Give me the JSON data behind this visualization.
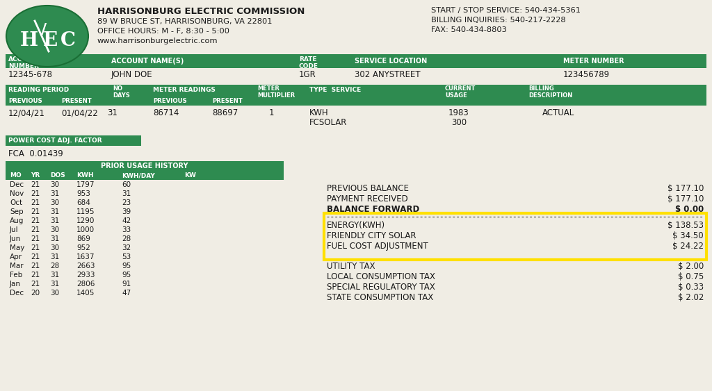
{
  "bg_color": "#f0ede4",
  "green_color": "#2e8b50",
  "white": "#ffffff",
  "black": "#1a1a1a",
  "yellow": "#FFE000",
  "company_name": "HARRISONBURG ELECTRIC COMMISSION",
  "company_addr1": "89 W BRUCE ST, HARRISONBURG, VA 22801",
  "company_addr2": "OFFICE HOURS: M - F, 8:30 - 5:00",
  "company_addr3": "www.harrisonburgelectric.com",
  "contact1": "START / STOP SERVICE: 540-434-5361",
  "contact2": "BILLING INQUIRIES: 540-217-2228",
  "contact3": "FAX: 540-434-8803",
  "account_number": "12345-678",
  "account_name": "JOHN DOE",
  "rate_code": "1GR",
  "service_location": "302 ANYSTREET",
  "meter_number": "123456789",
  "reading_previous": "12/04/21",
  "reading_present": "01/04/22",
  "no_days": "31",
  "meter_prev": "86714",
  "meter_present": "88697",
  "meter_multiplier": "1",
  "type_service1": "KWH",
  "type_service2": "FCSOLAR",
  "current_usage1": "1983",
  "current_usage2": "300",
  "billing_description": "ACTUAL",
  "fca_label": "POWER COST ADJ. FACTOR",
  "fca_value": "FCA  0.01439",
  "usage_history": [
    {
      "mo": "Dec",
      "yr": "21",
      "dos": "30",
      "kwh": "1797",
      "kwhday": "60",
      "kw": ""
    },
    {
      "mo": "Nov",
      "yr": "21",
      "dos": "31",
      "kwh": "953",
      "kwhday": "31",
      "kw": ""
    },
    {
      "mo": "Oct",
      "yr": "21",
      "dos": "30",
      "kwh": "684",
      "kwhday": "23",
      "kw": ""
    },
    {
      "mo": "Sep",
      "yr": "21",
      "dos": "31",
      "kwh": "1195",
      "kwhday": "39",
      "kw": ""
    },
    {
      "mo": "Aug",
      "yr": "21",
      "dos": "31",
      "kwh": "1290",
      "kwhday": "42",
      "kw": ""
    },
    {
      "mo": "Jul",
      "yr": "21",
      "dos": "30",
      "kwh": "1000",
      "kwhday": "33",
      "kw": ""
    },
    {
      "mo": "Jun",
      "yr": "21",
      "dos": "31",
      "kwh": "869",
      "kwhday": "28",
      "kw": ""
    },
    {
      "mo": "May",
      "yr": "21",
      "dos": "30",
      "kwh": "952",
      "kwhday": "32",
      "kw": ""
    },
    {
      "mo": "Apr",
      "yr": "21",
      "dos": "31",
      "kwh": "1637",
      "kwhday": "53",
      "kw": ""
    },
    {
      "mo": "Mar",
      "yr": "21",
      "dos": "28",
      "kwh": "2663",
      "kwhday": "95",
      "kw": ""
    },
    {
      "mo": "Feb",
      "yr": "21",
      "dos": "31",
      "kwh": "2933",
      "kwhday": "95",
      "kw": ""
    },
    {
      "mo": "Jan",
      "yr": "21",
      "dos": "31",
      "kwh": "2806",
      "kwhday": "91",
      "kw": ""
    },
    {
      "mo": "Dec",
      "yr": "20",
      "dos": "30",
      "kwh": "1405",
      "kwhday": "47",
      "kw": ""
    }
  ],
  "prev_balance_lbl": "PREVIOUS BALANCE",
  "prev_balance_amt": "$ 177.10",
  "payment_lbl": "PAYMENT RECEIVED",
  "payment_amt": "$ 177.10",
  "balance_fwd_lbl": "BALANCE FORWARD",
  "balance_fwd_amt": "$ 0.00",
  "bill_items_highlighted": [
    {
      "label": "ENERGY(KWH)",
      "amount": "$ 138.53"
    },
    {
      "label": "FRIENDLY CITY SOLAR",
      "amount": "$ 34.50"
    },
    {
      "label": "FUEL COST ADJUSTMENT",
      "amount": "$ 24.22"
    }
  ],
  "bill_items_normal": [
    {
      "label": "UTILITY TAX",
      "amount": "$ 2.00"
    },
    {
      "label": "LOCAL CONSUMPTION TAX",
      "amount": "$ 0.75"
    },
    {
      "label": "SPECIAL REGULATORY TAX",
      "amount": "$ 0.33"
    },
    {
      "label": "STATE CONSUMPTION TAX",
      "amount": "$ 2.02"
    }
  ]
}
